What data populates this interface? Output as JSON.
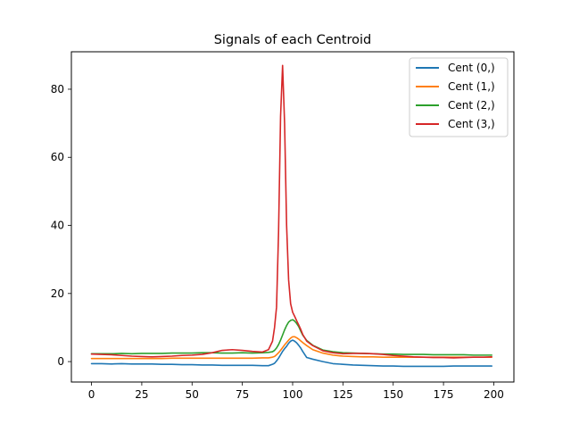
{
  "chart_data": {
    "type": "line",
    "title": "Signals of each Centroid",
    "xlabel": "",
    "ylabel": "",
    "xlim": [
      -10,
      210
    ],
    "ylim": [
      -6,
      91
    ],
    "xticks": [
      0,
      25,
      50,
      75,
      100,
      125,
      150,
      175,
      200
    ],
    "yticks": [
      0,
      20,
      40,
      60,
      80
    ],
    "grid": false,
    "legend_position": "top-right",
    "x": [
      0,
      5,
      10,
      15,
      20,
      25,
      30,
      35,
      40,
      45,
      50,
      55,
      60,
      65,
      70,
      75,
      80,
      85,
      88,
      90,
      91,
      92,
      93,
      94,
      95,
      96,
      97,
      98,
      99,
      100,
      101,
      102,
      103,
      104,
      105,
      107,
      110,
      115,
      120,
      125,
      130,
      135,
      140,
      145,
      150,
      155,
      160,
      165,
      170,
      175,
      180,
      185,
      190,
      195,
      199
    ],
    "series": [
      {
        "name": "Cent (0,)",
        "color": "#1f77b4",
        "values": [
          -0.6,
          -0.6,
          -0.7,
          -0.6,
          -0.7,
          -0.7,
          -0.7,
          -0.8,
          -0.8,
          -0.9,
          -0.9,
          -1.0,
          -1.0,
          -1.1,
          -1.1,
          -1.1,
          -1.1,
          -1.2,
          -1.2,
          -0.8,
          -0.5,
          0.2,
          1.0,
          2.0,
          3.0,
          3.8,
          4.5,
          5.4,
          6.0,
          6.3,
          6.0,
          5.5,
          4.8,
          4.0,
          3.0,
          1.2,
          0.7,
          0.0,
          -0.6,
          -0.8,
          -1.0,
          -1.1,
          -1.2,
          -1.3,
          -1.3,
          -1.4,
          -1.4,
          -1.4,
          -1.4,
          -1.4,
          -1.3,
          -1.3,
          -1.3,
          -1.3,
          -1.3
        ]
      },
      {
        "name": "Cent (1,)",
        "color": "#ff7f0e",
        "values": [
          0.9,
          0.9,
          0.9,
          0.9,
          0.9,
          0.9,
          0.9,
          0.9,
          1.0,
          1.0,
          1.0,
          1.0,
          1.0,
          1.0,
          1.0,
          1.0,
          1.0,
          1.1,
          1.1,
          1.3,
          1.5,
          2.0,
          2.6,
          3.3,
          4.1,
          4.9,
          5.6,
          6.3,
          6.9,
          7.3,
          7.3,
          7.0,
          6.6,
          6.1,
          5.6,
          4.7,
          3.5,
          2.5,
          1.9,
          1.6,
          1.5,
          1.4,
          1.4,
          1.3,
          1.3,
          1.3,
          1.3,
          1.3,
          1.3,
          1.3,
          1.3,
          1.3,
          1.3,
          1.3,
          1.3
        ]
      },
      {
        "name": "Cent (2,)",
        "color": "#2ca02c",
        "values": [
          2.3,
          2.3,
          2.3,
          2.4,
          2.3,
          2.4,
          2.4,
          2.4,
          2.5,
          2.5,
          2.5,
          2.6,
          2.6,
          2.5,
          2.5,
          2.6,
          2.5,
          2.6,
          2.7,
          2.9,
          3.3,
          4.0,
          5.0,
          6.3,
          7.8,
          9.3,
          10.6,
          11.6,
          12.1,
          12.3,
          11.9,
          11.2,
          10.3,
          9.0,
          7.8,
          6.2,
          4.8,
          3.4,
          2.9,
          2.6,
          2.5,
          2.4,
          2.3,
          2.2,
          2.2,
          2.1,
          2.1,
          2.1,
          2.0,
          2.0,
          2.0,
          2.0,
          1.9,
          1.9,
          1.9
        ]
      },
      {
        "name": "Cent (3,)",
        "color": "#d62728",
        "values": [
          2.2,
          2.1,
          2.0,
          1.8,
          1.6,
          1.5,
          1.4,
          1.5,
          1.6,
          1.8,
          1.9,
          2.1,
          2.6,
          3.3,
          3.5,
          3.3,
          3.0,
          2.8,
          3.5,
          6.0,
          10.0,
          16.0,
          38.0,
          72.0,
          87.0,
          70.0,
          40.0,
          24.0,
          17.0,
          14.5,
          13.3,
          12.0,
          10.8,
          9.5,
          8.0,
          6.0,
          4.7,
          3.2,
          2.6,
          2.3,
          2.4,
          2.4,
          2.3,
          2.1,
          1.8,
          1.6,
          1.4,
          1.3,
          1.2,
          1.2,
          1.1,
          1.2,
          1.3,
          1.3,
          1.4
        ]
      }
    ]
  }
}
